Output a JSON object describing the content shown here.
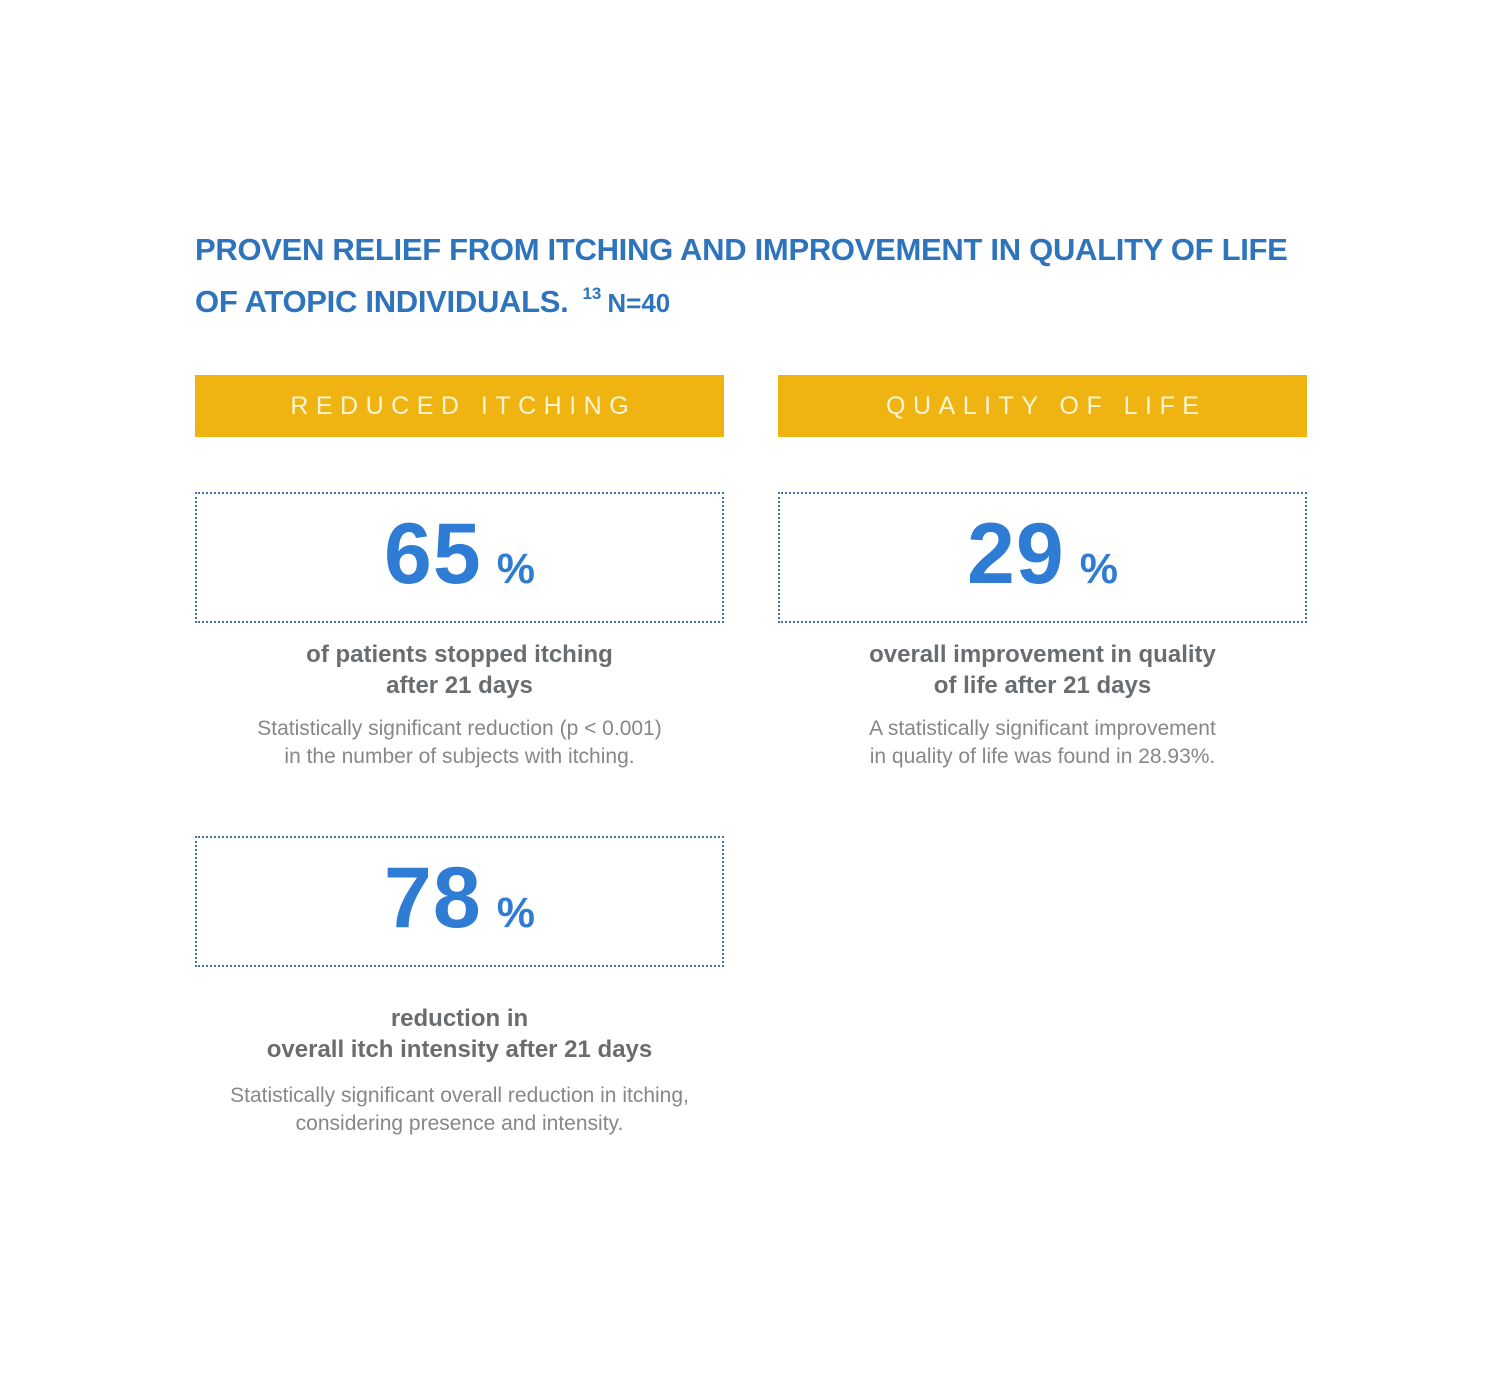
{
  "colors": {
    "banner_yellow": "#efb412",
    "banner_text": "#fbf5d5",
    "title_blue": "#2e74bd",
    "number_blue": "#2f7cd4",
    "caption_gray": "#6a6d70",
    "detail_gray": "#85878a",
    "dotted_border_blue": "#41719c",
    "page_bg": "#ffffff"
  },
  "title": {
    "line1": "PROVEN RELIEF FROM ITCHING AND IMPROVEMENT IN QUALITY OF LIFE",
    "line2": "OF ATOPIC INDIVIDUALS.",
    "reference": "13",
    "sample_size": "N=40"
  },
  "columns": [
    {
      "banner": "REDUCED ITCHING",
      "stats": [
        {
          "value": "65",
          "unit": "%",
          "caption_line1": "of patients stopped itching",
          "caption_line2": "after 21 days",
          "detail_line1": "Statistically significant reduction (p < 0.001)",
          "detail_line2": "in the number of subjects with itching."
        },
        {
          "value": "78",
          "unit": "%",
          "caption_line1": "reduction in",
          "caption_line2": "overall itch intensity after 21 days",
          "detail_line1": "Statistically significant overall reduction in itching,",
          "detail_line2": "considering presence and intensity."
        }
      ]
    },
    {
      "banner": "QUALITY OF LIFE",
      "stats": [
        {
          "value": "29",
          "unit": "%",
          "caption_line1": "overall improvement in quality",
          "caption_line2": "of life after 21 days",
          "detail_line1": "A statistically significant improvement",
          "detail_line2": "in quality of life was found in 28.93%."
        }
      ]
    }
  ]
}
